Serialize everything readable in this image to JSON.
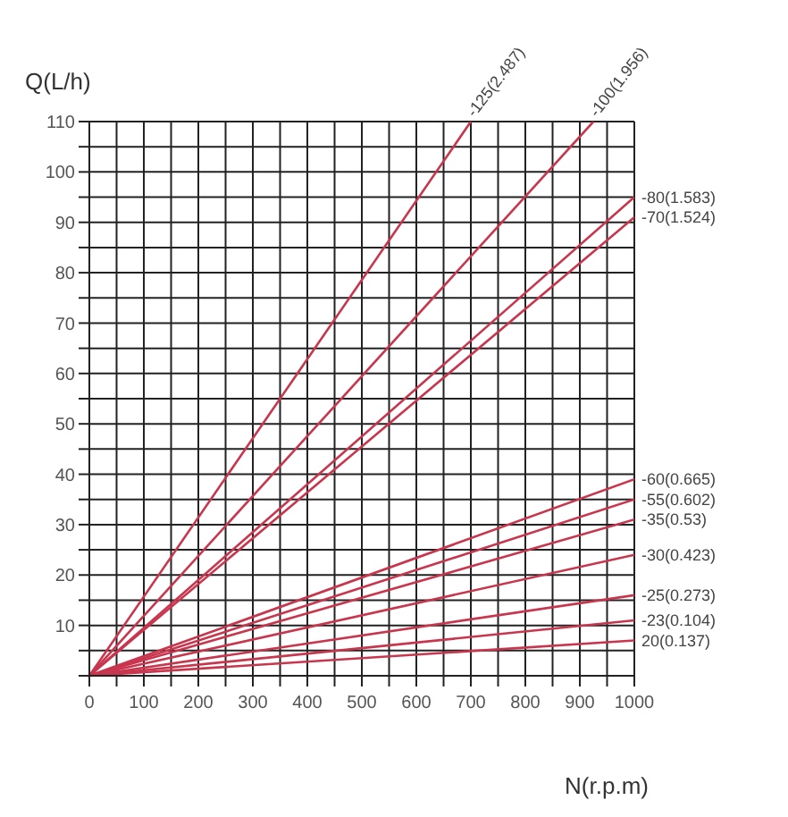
{
  "chart_data": {
    "type": "line",
    "xlabel": "N(r.p.m)",
    "ylabel": "Q(L/h)",
    "xlim": [
      0,
      1000
    ],
    "ylim": [
      0,
      110
    ],
    "xticks": [
      0,
      {
        "value": 50,
        "label": null
      },
      100,
      {
        "value": 150,
        "label": null
      },
      200,
      {
        "value": 250,
        "label": null
      },
      300,
      {
        "value": 350,
        "label": null
      },
      400,
      {
        "value": 450,
        "label": null
      },
      500,
      {
        "value": 550,
        "label": null
      },
      600,
      {
        "value": 650,
        "label": null
      },
      700,
      {
        "value": 750,
        "label": null
      },
      800,
      {
        "value": 850,
        "label": null
      },
      900,
      {
        "value": 950,
        "label": null
      },
      1000
    ],
    "yticks": [
      {
        "value": 0,
        "label": null
      },
      {
        "value": 5,
        "label": null
      },
      10,
      {
        "value": 15,
        "label": null
      },
      20,
      {
        "value": 25,
        "label": null
      },
      30,
      {
        "value": 35,
        "label": null
      },
      40,
      {
        "value": 45,
        "label": null
      },
      50,
      {
        "value": 55,
        "label": null
      },
      60,
      {
        "value": 65,
        "label": null
      },
      70,
      {
        "value": 75,
        "label": null
      },
      80,
      {
        "value": 85,
        "label": null
      },
      90,
      {
        "value": 95,
        "label": null
      },
      100,
      {
        "value": 105,
        "label": null
      },
      110
    ],
    "grid": true,
    "marker": "none",
    "line_style": "solid",
    "series": [
      {
        "name": "-125(2.487)",
        "color": "#c8364e",
        "x": [
          0,
          700
        ],
        "values": [
          0,
          110
        ]
      },
      {
        "name": "-100(1.956)",
        "color": "#c8364e",
        "x": [
          0,
          925
        ],
        "values": [
          0,
          110
        ]
      },
      {
        "name": "-80(1.583)",
        "color": "#c8364e",
        "x": [
          0,
          1000
        ],
        "values": [
          0,
          95
        ]
      },
      {
        "name": "-70(1.524)",
        "color": "#c8364e",
        "x": [
          0,
          1000
        ],
        "values": [
          0,
          91
        ]
      },
      {
        "name": "-60(0.665)",
        "color": "#c8364e",
        "x": [
          0,
          1000
        ],
        "values": [
          0,
          39
        ]
      },
      {
        "name": "-55(0.602)",
        "color": "#c8364e",
        "x": [
          0,
          1000
        ],
        "values": [
          0,
          35
        ]
      },
      {
        "name": "-35(0.53)",
        "color": "#c8364e",
        "x": [
          0,
          1000
        ],
        "values": [
          0,
          31
        ]
      },
      {
        "name": "-30(0.423)",
        "color": "#c8364e",
        "x": [
          0,
          1000
        ],
        "values": [
          0,
          24
        ]
      },
      {
        "name": "-25(0.273)",
        "color": "#c8364e",
        "x": [
          0,
          1000
        ],
        "values": [
          0,
          16
        ]
      },
      {
        "name": "-23(0.104)",
        "color": "#c8364e",
        "x": [
          0,
          1000
        ],
        "values": [
          0,
          11
        ]
      },
      {
        "name": "20(0.137)",
        "color": "#c8364e",
        "x": [
          0,
          1000
        ],
        "values": [
          0,
          7
        ]
      }
    ]
  }
}
